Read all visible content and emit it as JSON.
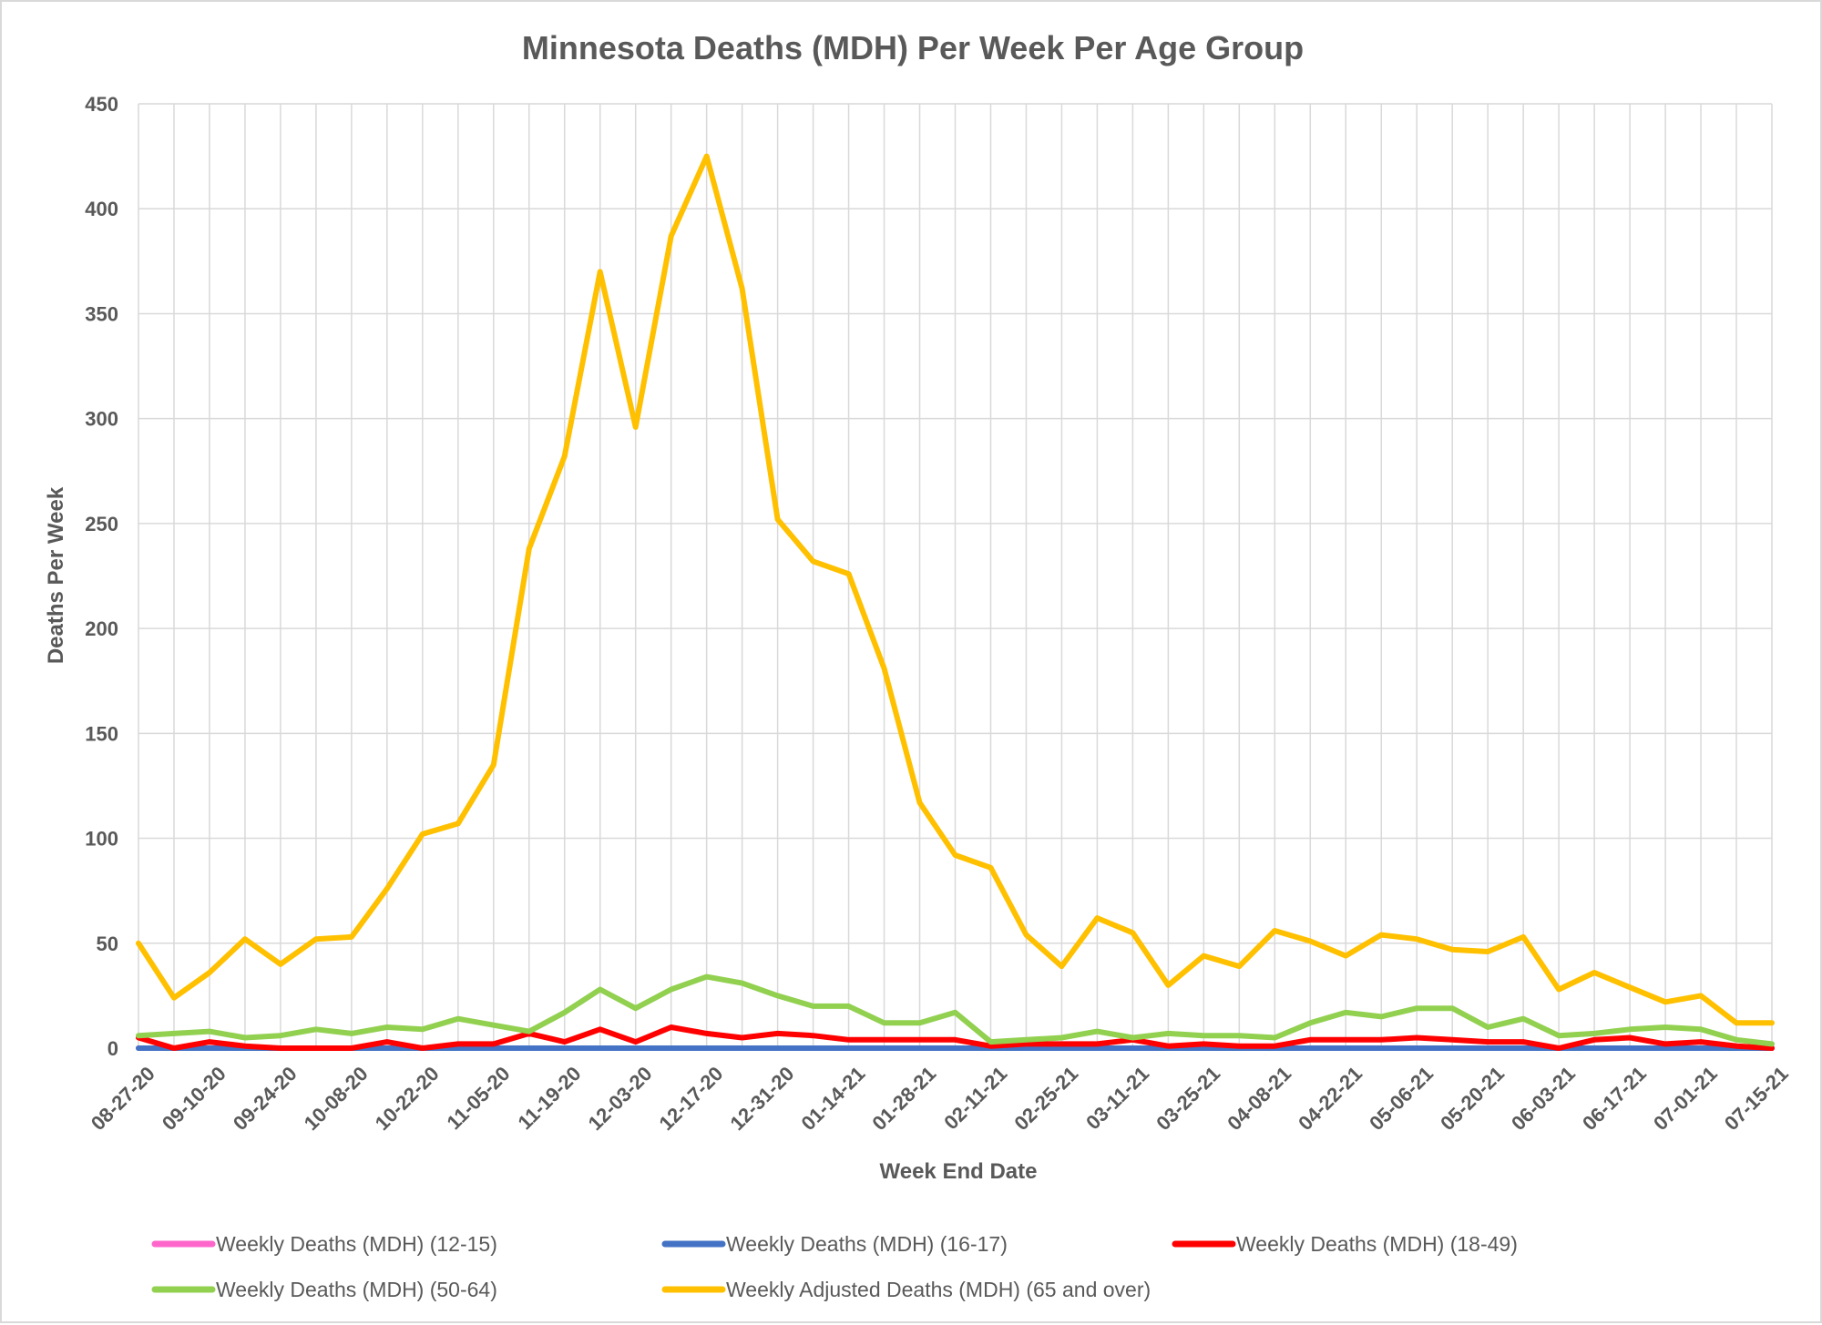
{
  "chart_data": {
    "type": "line",
    "title": "Minnesota Deaths (MDH) Per Week Per Age Group",
    "xlabel": "Week End Date",
    "ylabel": "Deaths Per Week",
    "ylim": [
      0,
      450
    ],
    "yticks": [
      0,
      50,
      100,
      150,
      200,
      250,
      300,
      350,
      400,
      450
    ],
    "grid": true,
    "legend_position": "bottom",
    "x_tick_labels": [
      "08-27-20",
      "09-10-20",
      "09-24-20",
      "10-08-20",
      "10-22-20",
      "11-05-20",
      "11-19-20",
      "12-03-20",
      "12-17-20",
      "12-31-20",
      "01-14-21",
      "01-28-21",
      "02-11-21",
      "02-25-21",
      "03-11-21",
      "03-25-21",
      "04-08-21",
      "04-22-21",
      "05-06-21",
      "05-20-21",
      "06-03-21",
      "06-17-21",
      "07-01-21",
      "07-15-21"
    ],
    "series": [
      {
        "name": "Weekly Deaths (MDH) (12-15)",
        "color": "#ff66cc",
        "values": [
          0,
          0,
          0,
          0,
          0,
          0,
          0,
          0,
          0,
          0,
          0,
          0,
          0,
          0,
          0,
          0,
          0,
          0,
          0,
          0,
          0,
          0,
          0,
          0,
          0,
          0,
          0,
          0,
          0,
          0,
          0,
          0,
          0,
          0,
          0,
          0,
          0,
          0,
          0,
          0,
          0,
          0,
          0,
          0,
          0,
          0,
          0
        ]
      },
      {
        "name": "Weekly Deaths (MDH) (16-17)",
        "color": "#4472c4",
        "values": [
          0,
          0,
          0,
          0,
          0,
          0,
          0,
          0,
          0,
          0,
          0,
          0,
          0,
          0,
          0,
          0,
          0,
          0,
          0,
          0,
          0,
          0,
          0,
          0,
          0,
          0,
          0,
          0,
          0,
          0,
          0,
          0,
          0,
          0,
          0,
          0,
          0,
          0,
          0,
          0,
          0,
          0,
          0,
          0,
          0,
          0,
          0
        ]
      },
      {
        "name": "Weekly Deaths (MDH) (18-49)",
        "color": "#ff0000",
        "values": [
          5,
          0,
          3,
          1,
          0,
          0,
          0,
          3,
          0,
          2,
          2,
          7,
          3,
          9,
          3,
          10,
          7,
          5,
          7,
          6,
          4,
          4,
          4,
          4,
          1,
          2,
          2,
          2,
          4,
          1,
          2,
          1,
          1,
          4,
          4,
          4,
          5,
          4,
          3,
          3,
          0,
          4,
          5,
          2,
          3,
          1,
          0
        ]
      },
      {
        "name": "Weekly Deaths (MDH) (50-64)",
        "color": "#92d050",
        "values": [
          6,
          7,
          8,
          5,
          6,
          9,
          7,
          10,
          9,
          14,
          11,
          8,
          17,
          28,
          19,
          28,
          34,
          31,
          25,
          20,
          20,
          12,
          12,
          17,
          3,
          4,
          5,
          8,
          5,
          7,
          6,
          6,
          5,
          12,
          17,
          15,
          19,
          19,
          10,
          14,
          6,
          7,
          9,
          10,
          9,
          4,
          2
        ]
      },
      {
        "name": "Weekly Adjusted Deaths (MDH) (65 and over)",
        "color": "#ffc000",
        "values": [
          50,
          24,
          36,
          52,
          40,
          52,
          53,
          76,
          102,
          107,
          135,
          238,
          282,
          370,
          296,
          387,
          425,
          362,
          252,
          232,
          226,
          181,
          117,
          92,
          86,
          54,
          39,
          62,
          55,
          30,
          44,
          39,
          56,
          51,
          44,
          54,
          52,
          47,
          46,
          53,
          28,
          36,
          29,
          22,
          25,
          12,
          12
        ]
      }
    ]
  }
}
